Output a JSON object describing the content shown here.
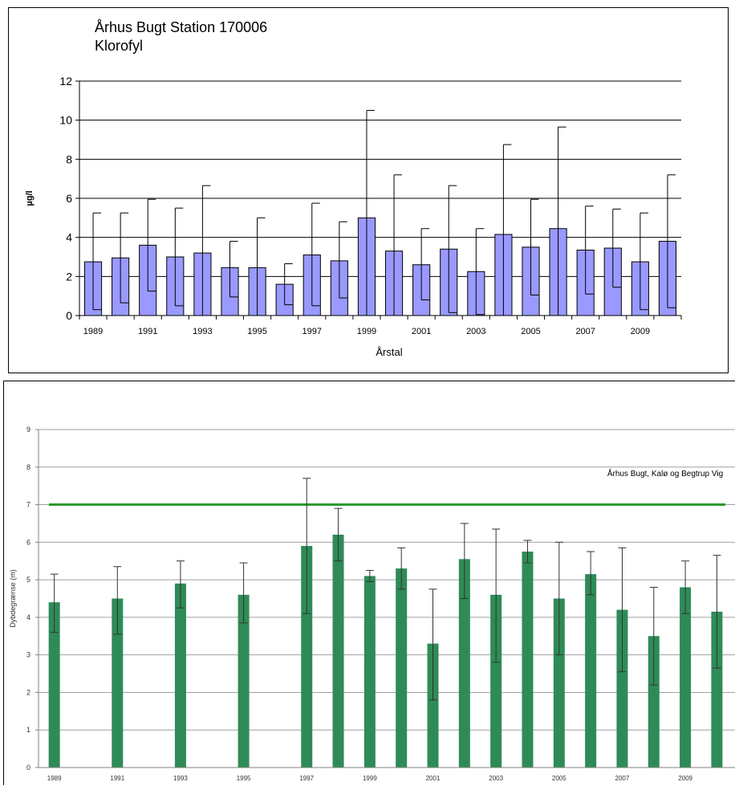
{
  "chart_data": [
    {
      "type": "bar",
      "title": "Århus Bugt Station 170006",
      "subtitle": "Klorofyl",
      "xlabel": "Årstal",
      "ylabel": "µg/l",
      "ylim": [
        0,
        12
      ],
      "yticks": [
        0,
        2,
        4,
        6,
        8,
        10,
        12
      ],
      "grid": true,
      "bar_color": "#9999ff",
      "categories": [
        "1989",
        "1990",
        "1991",
        "1992",
        "1993",
        "1994",
        "1995",
        "1996",
        "1997",
        "1998",
        "1999",
        "2000",
        "2001",
        "2002",
        "2003",
        "2004",
        "2005",
        "2006",
        "2007",
        "2008",
        "2009",
        "2010"
      ],
      "xtick_labels": [
        "1989",
        "1991",
        "1993",
        "1995",
        "1997",
        "1999",
        "2001",
        "2003",
        "2005",
        "2007",
        "2009"
      ],
      "values": [
        2.75,
        2.95,
        3.6,
        3.0,
        3.2,
        2.45,
        2.45,
        1.6,
        3.1,
        2.8,
        5.0,
        3.3,
        2.6,
        3.4,
        2.25,
        4.15,
        3.5,
        4.45,
        3.35,
        3.45,
        2.75,
        3.8
      ],
      "error_upper": [
        5.25,
        5.25,
        5.95,
        5.5,
        6.65,
        3.8,
        5.0,
        2.65,
        5.75,
        4.8,
        10.5,
        7.2,
        4.45,
        6.65,
        4.45,
        8.75,
        5.95,
        9.65,
        5.6,
        5.45,
        5.25,
        7.2
      ],
      "error_lower": [
        0.3,
        0.65,
        1.25,
        0.5,
        0.0,
        0.95,
        0.0,
        0.55,
        0.5,
        0.9,
        0.0,
        0.0,
        0.8,
        0.15,
        0.05,
        0.0,
        1.05,
        0.0,
        1.1,
        1.45,
        0.3,
        0.4
      ]
    },
    {
      "type": "bar",
      "title": "",
      "annotation": "Århus Bugt, Kalø og Begtrup Vig",
      "xlabel": "",
      "ylabel": "Dybdegrænse (m)",
      "ylim": [
        0,
        9
      ],
      "yticks": [
        0,
        1,
        2,
        3,
        4,
        5,
        6,
        7,
        8,
        9
      ],
      "grid": true,
      "bar_color": "#2e8b57",
      "target_line": {
        "value": 7,
        "color": "#2e9a2e"
      },
      "categories": [
        "1989",
        "1991",
        "1993",
        "1995",
        "1997",
        "1998",
        "1999",
        "2000",
        "2001",
        "2002",
        "2003",
        "2004",
        "2005",
        "2006",
        "2007",
        "2008",
        "2009",
        "2010"
      ],
      "positions": [
        1989,
        1991,
        1993,
        1995,
        1997,
        1998,
        1999,
        2000,
        2001,
        2002,
        2003,
        2004,
        2005,
        2006,
        2007,
        2008,
        2009,
        2010
      ],
      "xtick_labels": [
        "1989",
        "1991",
        "1993",
        "1995",
        "1997",
        "1999",
        "2001",
        "2003",
        "2005",
        "2007",
        "2009"
      ],
      "values": [
        4.4,
        4.5,
        4.9,
        4.6,
        5.9,
        6.2,
        5.1,
        5.3,
        3.3,
        5.55,
        4.6,
        5.75,
        4.5,
        5.15,
        4.2,
        3.5,
        4.8,
        4.15
      ],
      "error_upper": [
        5.15,
        5.35,
        5.5,
        5.45,
        7.7,
        6.9,
        5.25,
        5.85,
        4.75,
        6.5,
        6.35,
        6.05,
        6.0,
        5.75,
        5.85,
        4.8,
        5.5,
        5.65
      ],
      "error_lower": [
        3.6,
        3.55,
        4.25,
        3.85,
        4.1,
        5.5,
        4.95,
        4.75,
        1.8,
        4.5,
        2.8,
        5.45,
        3.0,
        4.6,
        2.55,
        2.2,
        4.1,
        2.65
      ]
    }
  ]
}
